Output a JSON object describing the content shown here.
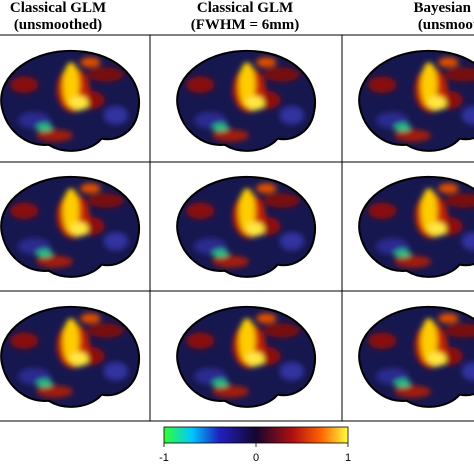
{
  "columns": [
    {
      "title": "Classical GLM",
      "subtitle": "(unsmoothed)"
    },
    {
      "title": "Classical GLM",
      "subtitle": "(FWHM = 6mm)"
    },
    {
      "title": "Bayesian GLM",
      "subtitle": "(unsmoothed)"
    }
  ],
  "colorbar": {
    "lim": [
      -1,
      1
    ],
    "ticks": [
      -1,
      0,
      1
    ]
  }
}
